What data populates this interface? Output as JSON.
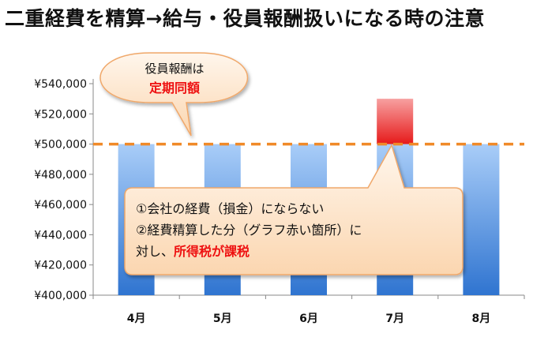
{
  "title": "二重経費を精算→給与・役員報酬扱いになる時の注意",
  "chart_data": {
    "type": "bar",
    "categories": [
      "4月",
      "5月",
      "6月",
      "7月",
      "8月"
    ],
    "series": [
      {
        "values": [
          500000,
          500000,
          500000,
          500000,
          500000
        ]
      },
      {
        "values": [
          0,
          0,
          0,
          30000,
          0
        ]
      }
    ],
    "reference_line": {
      "value": 500000,
      "style": "dashed",
      "color": "#f08a28"
    },
    "ylim": [
      400000,
      540000
    ],
    "yticks": [
      400000,
      420000,
      440000,
      460000,
      480000,
      500000,
      520000,
      540000
    ],
    "ytick_labels": [
      "¥400,000",
      "¥420,000",
      "¥440,000",
      "¥460,000",
      "¥480,000",
      "¥500,000",
      "¥520,000",
      "¥540,000"
    ],
    "grid": false,
    "colors": {
      "base": "#4f8fe0",
      "extra": "#ee3b3b",
      "line": "#f08a28"
    }
  },
  "callout_top": {
    "line1": "役員報酬は",
    "line2": "定期同額"
  },
  "callout_bottom": {
    "line1": "①会社の経費（損金）にならない",
    "line2": "②経費精算した分（グラフ赤い箇所）に",
    "line3_prefix": "対し、",
    "line3_red": "所得税が課税"
  }
}
